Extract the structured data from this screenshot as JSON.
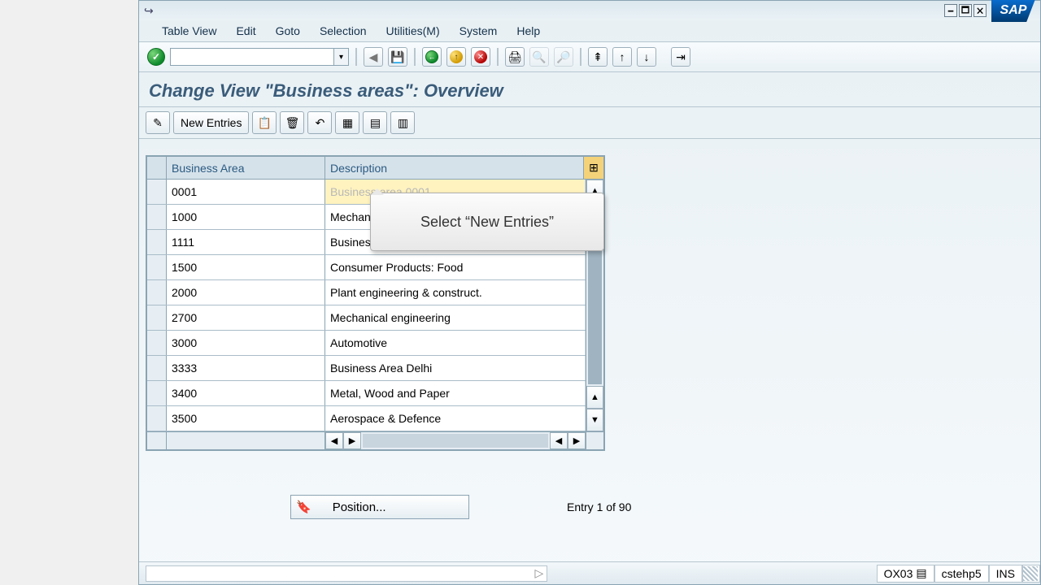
{
  "window": {
    "logo": "SAP"
  },
  "menu": {
    "items": [
      "Table View",
      "Edit",
      "Goto",
      "Selection",
      "Utilities(M)",
      "System",
      "Help"
    ]
  },
  "stdToolbar": {
    "enter_label": "✓",
    "command_value": ""
  },
  "page": {
    "title": "Change View \"Business areas\": Overview"
  },
  "appToolbar": {
    "new_entries": "New Entries"
  },
  "table": {
    "columns": {
      "c1": "Business Area",
      "c2": "Description"
    },
    "rows": [
      {
        "ba": "0001",
        "desc": "Business area 0001",
        "highlight": true
      },
      {
        "ba": "1000",
        "desc": "Mechanical engineering"
      },
      {
        "ba": "1111",
        "desc": "Business Area Hyderabad"
      },
      {
        "ba": "1500",
        "desc": "Consumer Products: Food"
      },
      {
        "ba": "2000",
        "desc": "Plant engineering & construct."
      },
      {
        "ba": "2700",
        "desc": "Mechanical engineering"
      },
      {
        "ba": "3000",
        "desc": "Automotive"
      },
      {
        "ba": "3333",
        "desc": "Business Area Delhi"
      },
      {
        "ba": "3400",
        "desc": "Metal, Wood and Paper"
      },
      {
        "ba": "3500",
        "desc": "Aerospace & Defence"
      }
    ]
  },
  "tooltip": {
    "text": "Select “New Entries”"
  },
  "position": {
    "label": "Position...",
    "entry_text": "Entry 1 of 90"
  },
  "status": {
    "tcode": "OX03",
    "system": "cstehp5",
    "mode": "INS"
  },
  "colors": {
    "title": "#3a5c7a",
    "header_bg": "#d6e2ea",
    "highlight": "#fff3c0"
  }
}
